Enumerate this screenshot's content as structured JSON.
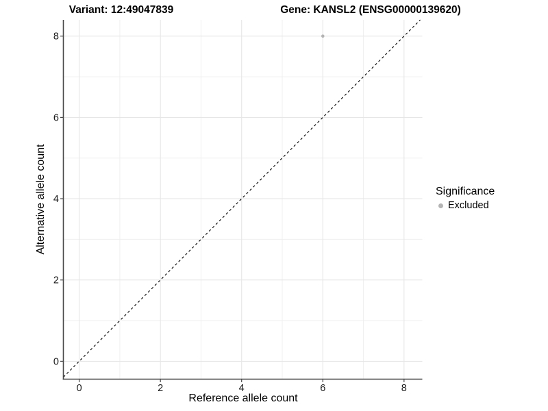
{
  "chart_data": {
    "type": "scatter",
    "titles": {
      "left": "Variant: 12:49047839",
      "right": "Gene: KANSL2 (ENSG00000139620)"
    },
    "xlabel": "Reference allele count",
    "ylabel": "Alternative allele count",
    "xlim": [
      -0.39,
      8.45
    ],
    "ylim": [
      -0.44,
      8.4
    ],
    "xticks": [
      0,
      2,
      4,
      6,
      8
    ],
    "yticks": [
      0,
      2,
      4,
      6,
      8
    ],
    "xminor": [
      1,
      3,
      5,
      7
    ],
    "yminor": [
      1,
      3,
      5,
      7
    ],
    "grid": "major and minor gridlines on white panel",
    "identity_line": {
      "type": "y=x",
      "style": "dashed",
      "color": "#111111"
    },
    "series": [
      {
        "name": "Excluded",
        "color": "#b4b4b4",
        "points": [
          [
            6,
            8
          ]
        ]
      }
    ],
    "legend": {
      "title": "Significance",
      "position": "right",
      "items": [
        {
          "label": "Excluded",
          "color": "#b4b4b4"
        }
      ]
    },
    "colors": {
      "background": "#ffffff",
      "grid_major": "#e6e6e6",
      "grid_minor": "#efefef",
      "axis_line": "#464646",
      "tick_text": "#1a1a1a"
    }
  }
}
